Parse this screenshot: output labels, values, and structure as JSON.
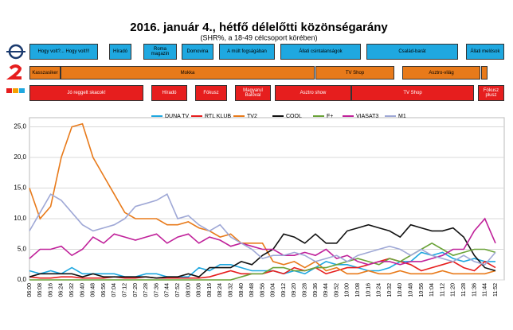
{
  "chart_data": {
    "type": "line",
    "title": "2016. január 4., hétfő délelőtti közönségarány",
    "subtitle": "(SHR%, a 18-49 célcsoport körében)",
    "schedule": [
      [
        "Hogy volt?... Hogy volt!!!",
        "Híradó",
        "Roma magazin",
        "Domovina",
        "A múlt fogságában",
        "Állati csintalanságok",
        "Család-barát",
        "Állati melósok"
      ],
      [
        "Kasszasiker",
        "Mokka",
        "TV Shop",
        "Asztro-világ"
      ],
      [
        "Jó reggelt skacok!",
        "Híradó",
        "Fókusz",
        "Magyarul Balóval",
        "Asztro show",
        "TV Shop",
        "Fókusz plusz"
      ]
    ],
    "categories": [
      "06:00",
      "06:08",
      "06:16",
      "06:24",
      "06:32",
      "06:40",
      "06:48",
      "06:56",
      "07:04",
      "07:12",
      "07:20",
      "07:28",
      "07:36",
      "07:44",
      "07:52",
      "08:00",
      "08:08",
      "08:16",
      "08:24",
      "08:32",
      "08:40",
      "08:48",
      "08:56",
      "09:04",
      "09:12",
      "09:20",
      "09:28",
      "09:36",
      "09:44",
      "09:52",
      "10:00",
      "10:08",
      "10:16",
      "10:24",
      "10:32",
      "10:40",
      "10:48",
      "10:56",
      "11:04",
      "11:12",
      "11:20",
      "11:28",
      "11:36",
      "11:44",
      "11:52"
    ],
    "ylim": [
      0,
      26.5
    ],
    "yticks": [
      {
        "value": 0,
        "label": "0,0"
      },
      {
        "value": 5,
        "label": "5,0"
      },
      {
        "value": 10,
        "label": "10,0"
      },
      {
        "value": 15,
        "label": "15,0"
      },
      {
        "value": 20,
        "label": "20,0"
      },
      {
        "value": 25,
        "label": "25,0"
      }
    ],
    "grid": true,
    "series": [
      {
        "name": "DUNA TV",
        "color": "#1fa8e0",
        "values": [
          1.5,
          1,
          1.5,
          1,
          2,
          1,
          1,
          1,
          1,
          0.5,
          0.5,
          1,
          1,
          0.5,
          0.5,
          0.5,
          2,
          1.5,
          2.5,
          2.5,
          2,
          1.5,
          1.5,
          1.5,
          1,
          1.5,
          1,
          2,
          3,
          2.5,
          2.5,
          2,
          1.5,
          1.5,
          2,
          3,
          3,
          4.5,
          4,
          4.5,
          3.5,
          3,
          3.5,
          3,
          3
        ]
      },
      {
        "name": "RTL KLUB",
        "color": "#e61e1e",
        "values": [
          0.5,
          0.3,
          0.3,
          0.5,
          0.5,
          0.3,
          0.3,
          0.3,
          0.5,
          0.3,
          0.3,
          0.5,
          0.3,
          0.3,
          0.3,
          0.3,
          0.3,
          0.5,
          1,
          1.5,
          1,
          1,
          1,
          1.5,
          1,
          2,
          1.5,
          2,
          1,
          1.5,
          2,
          2,
          2.5,
          3,
          3.5,
          3,
          2.5,
          1.5,
          2,
          2.5,
          3,
          2,
          1.5,
          3,
          2
        ]
      },
      {
        "name": "TV2",
        "color": "#e87a1a",
        "values": [
          15,
          10,
          12,
          20,
          25,
          25.5,
          20,
          17,
          14,
          11,
          10,
          10,
          10,
          9,
          9,
          9.5,
          8.5,
          8,
          7,
          7.5,
          6,
          6,
          6,
          3,
          2.5,
          3,
          2,
          3,
          1.5,
          2,
          1,
          1,
          1.5,
          1,
          1,
          1.5,
          1,
          1,
          1,
          1.5,
          1,
          1,
          1,
          1,
          1.5
        ]
      },
      {
        "name": "COOL",
        "color": "#111111",
        "values": [
          0.5,
          1,
          1,
          1,
          1,
          0.5,
          1,
          0.5,
          0.5,
          0.5,
          0.5,
          0.5,
          0.3,
          0.5,
          0.5,
          1,
          0.5,
          2,
          2,
          2,
          3,
          2.5,
          4,
          5,
          7.5,
          7,
          6,
          7.5,
          6,
          6,
          8,
          8.5,
          9,
          8.5,
          8,
          7,
          9,
          8.5,
          8,
          8,
          8.5,
          7,
          4,
          2,
          1.5
        ]
      },
      {
        "name": "F+",
        "color": "#6aa338",
        "values": [
          0,
          0,
          0,
          0,
          0,
          0,
          0,
          0,
          0,
          0,
          0,
          0,
          0,
          0,
          0,
          0,
          0,
          0,
          0,
          0,
          0.5,
          1,
          1,
          2,
          2,
          1.5,
          1.5,
          2,
          2,
          2.5,
          3,
          3.5,
          3,
          2.5,
          3.5,
          3,
          4,
          5,
          6,
          5,
          4,
          4.5,
          5,
          5,
          4.5
        ]
      },
      {
        "name": "VIASAT3",
        "color": "#c0219a",
        "values": [
          3.5,
          5,
          5,
          5.5,
          4,
          5,
          7,
          6,
          7.5,
          7,
          6.5,
          7,
          7.5,
          6,
          7,
          7.5,
          6,
          7,
          6.5,
          5.5,
          6,
          5.5,
          5,
          5,
          4,
          4,
          4.5,
          4,
          5,
          3.5,
          4,
          3,
          2.5,
          3,
          3,
          2.5,
          3,
          3,
          3.5,
          4,
          5,
          5,
          8,
          10,
          6
        ]
      },
      {
        "name": "M1",
        "color": "#9fa8d6",
        "values": [
          8,
          11,
          14,
          13,
          11,
          9,
          8,
          8.5,
          9,
          10,
          12,
          12.5,
          13,
          14,
          10,
          10.5,
          9,
          8,
          9,
          7,
          6,
          5,
          3.5,
          4,
          4,
          4.5,
          4,
          3,
          3.5,
          4,
          3,
          4,
          4.5,
          5,
          5.5,
          5,
          4,
          5,
          4,
          3.5,
          3,
          4,
          3,
          2.5,
          4.5
        ]
      }
    ]
  }
}
